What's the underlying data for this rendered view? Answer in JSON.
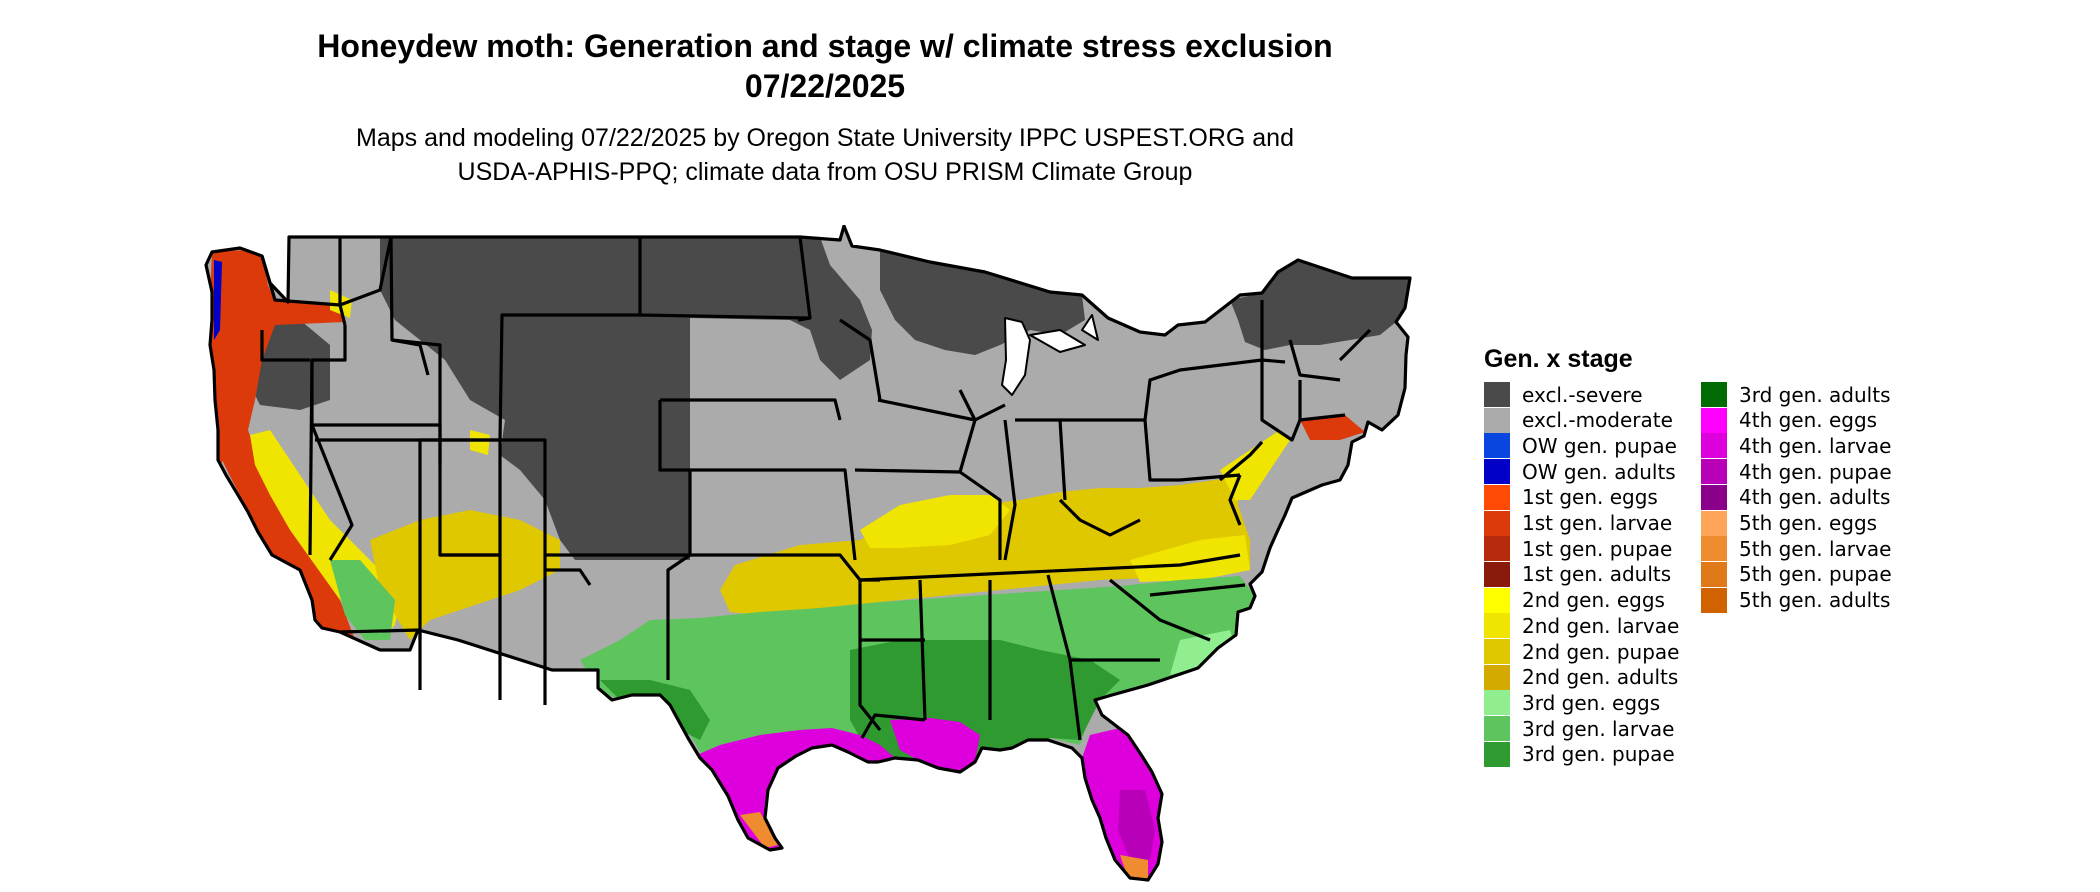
{
  "title": {
    "line1": "Honeydew moth: Generation and stage w/ climate stress exclusion",
    "line2": "07/22/2025"
  },
  "subtitle": {
    "line1": "Maps and modeling 07/22/2025 by Oregon State University IPPC USPEST.ORG and",
    "line2": "USDA-APHIS-PPQ; climate data from OSU PRISM Climate Group"
  },
  "legend": {
    "title": "Gen. x stage",
    "items": [
      {
        "label": "excl.-severe",
        "color": "#4a4a4a"
      },
      {
        "label": "excl.-moderate",
        "color": "#ababab"
      },
      {
        "label": "OW gen. pupae",
        "color": "#0a45e0"
      },
      {
        "label": "OW gen. adults",
        "color": "#0000c8"
      },
      {
        "label": "1st gen. eggs",
        "color": "#ff4a05"
      },
      {
        "label": "1st gen. larvae",
        "color": "#dd3a0c"
      },
      {
        "label": "1st gen. pupae",
        "color": "#b82a0c"
      },
      {
        "label": "1st gen. adults",
        "color": "#8a1a0c"
      },
      {
        "label": "2nd gen. eggs",
        "color": "#ffff00"
      },
      {
        "label": "2nd gen. larvae",
        "color": "#efe500"
      },
      {
        "label": "2nd gen. pupae",
        "color": "#e0c800"
      },
      {
        "label": "2nd gen. adults",
        "color": "#d4aa00"
      },
      {
        "label": "3rd gen. eggs",
        "color": "#90ee90"
      },
      {
        "label": "3rd gen. larvae",
        "color": "#5ec45e"
      },
      {
        "label": "3rd gen. pupae",
        "color": "#2f9a2f"
      },
      {
        "label": "3rd gen. adults",
        "color": "#036b03"
      },
      {
        "label": "4th gen. eggs",
        "color": "#ff00ff"
      },
      {
        "label": "4th gen. larvae",
        "color": "#dd00dd"
      },
      {
        "label": "4th gen. pupae",
        "color": "#b800b8"
      },
      {
        "label": "4th gen. adults",
        "color": "#8b008b"
      },
      {
        "label": "5th gen. eggs",
        "color": "#ffa55a"
      },
      {
        "label": "5th gen. larvae",
        "color": "#ef8c30"
      },
      {
        "label": "5th gen. pupae",
        "color": "#e07a18"
      },
      {
        "label": "5th gen. adults",
        "color": "#d06300"
      }
    ]
  }
}
